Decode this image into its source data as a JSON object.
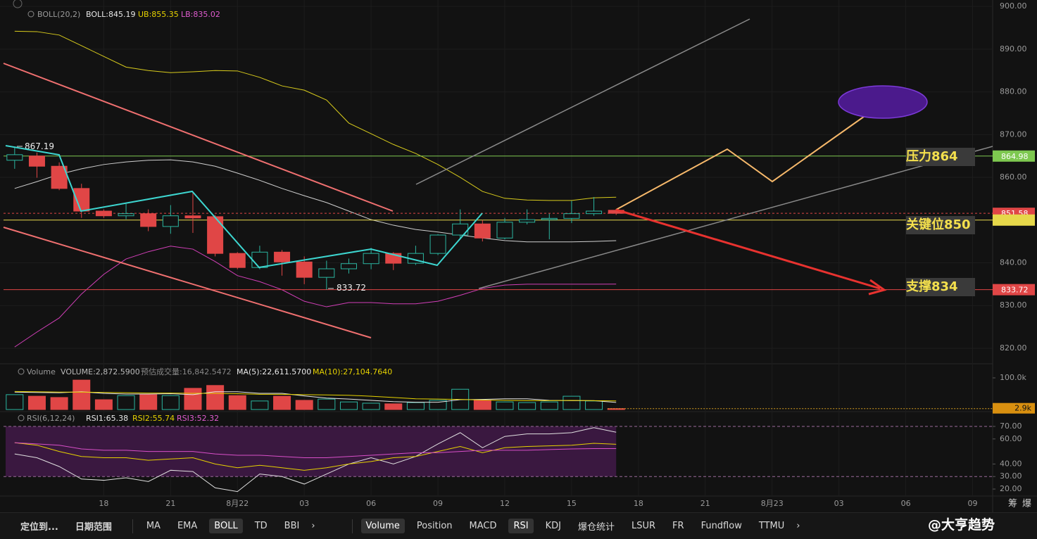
{
  "chart_data": [
    {
      "type": "candlestick",
      "title": "BOLL(20,2)",
      "x": [
        -4,
        -3,
        -2,
        -1,
        0,
        1,
        2,
        3,
        4,
        5,
        6,
        7,
        8,
        9,
        10,
        11,
        12,
        13,
        14,
        15,
        16,
        17,
        18,
        19,
        20,
        21,
        22,
        23
      ],
      "open": [
        864.0,
        865.0,
        862.6,
        857.4,
        852.1,
        851.0,
        851.5,
        848.5,
        851.0,
        850.8,
        842.2,
        838.9,
        842.5,
        840.2,
        836.6,
        838.6,
        839.8,
        842.2,
        839.9,
        842.2,
        846.5,
        849.1,
        845.8,
        849.5,
        850.1,
        850.4,
        851.5,
        852.3
      ],
      "high": [
        867.19,
        865.8,
        863.5,
        858.5,
        852.5,
        853.8,
        852.5,
        853.5,
        856.4,
        851.2,
        842.5,
        844.0,
        843.0,
        841.5,
        840.5,
        841.0,
        843.5,
        842.5,
        844.0,
        846.7,
        852.5,
        850.0,
        850.5,
        852.5,
        851.5,
        854.5,
        855.4,
        852.6
      ],
      "low": [
        862.0,
        859.9,
        857.0,
        850.5,
        850.5,
        850.2,
        847.4,
        846.8,
        847.0,
        841.5,
        838.5,
        838.5,
        837.0,
        835.0,
        833.72,
        837.5,
        838.5,
        838.3,
        839.5,
        841.8,
        845.8,
        845.0,
        845.5,
        849.0,
        845.5,
        849.3,
        851.0,
        851.2
      ],
      "close": [
        865.3,
        862.6,
        857.4,
        852.1,
        851.0,
        851.5,
        848.5,
        851.0,
        850.5,
        842.2,
        838.9,
        842.5,
        840.2,
        836.6,
        838.6,
        839.8,
        842.2,
        839.9,
        842.2,
        846.5,
        849.1,
        845.8,
        849.5,
        850.1,
        850.4,
        851.5,
        852.1,
        851.58
      ],
      "up_color": "#2bb5a0",
      "down_color": "#e04646",
      "series": [
        {
          "name": "BOLL:845.19",
          "color": "#cfcfcf",
          "values": [
            857.4,
            859.0,
            860.7,
            862.0,
            863.0,
            863.6,
            864.0,
            864.1,
            863.6,
            862.6,
            861.0,
            859.3,
            857.4,
            855.7,
            854.1,
            852.1,
            850.1,
            848.8,
            847.8,
            847.2,
            846.5,
            845.8,
            845.2,
            844.9,
            844.9,
            844.9,
            845.0,
            845.19
          ]
        },
        {
          "name": "UB:855.35",
          "color": "#d8cb1c",
          "values": [
            894.2,
            894.1,
            893.3,
            890.8,
            888.3,
            885.8,
            885.0,
            884.5,
            884.7,
            885.0,
            884.9,
            883.4,
            881.4,
            880.4,
            878.1,
            872.7,
            870.2,
            867.7,
            865.6,
            863.0,
            860.0,
            856.7,
            855.1,
            854.7,
            854.6,
            854.6,
            855.2,
            855.35
          ]
        },
        {
          "name": "LB:835.02",
          "color": "#d23fb8",
          "values": [
            820.3,
            823.8,
            827.1,
            832.7,
            837.3,
            840.9,
            842.6,
            843.9,
            843.2,
            840.3,
            837.0,
            835.6,
            833.7,
            831.0,
            829.7,
            830.7,
            830.7,
            830.4,
            830.4,
            831.0,
            832.4,
            834.0,
            834.8,
            835.0,
            835.0,
            835.0,
            835.0,
            835.02
          ]
        }
      ],
      "xlim": [
        -4.5,
        39.9
      ],
      "xticks": [
        {
          "value": 0,
          "label": "18"
        },
        {
          "value": 3,
          "label": "21"
        },
        {
          "value": 6,
          "label": "8月22"
        },
        {
          "value": 9,
          "label": "03"
        },
        {
          "value": 12,
          "label": "06"
        },
        {
          "value": 15,
          "label": "09"
        },
        {
          "value": 18,
          "label": "12"
        },
        {
          "value": 21,
          "label": "15"
        },
        {
          "value": 24,
          "label": "18"
        },
        {
          "value": 27,
          "label": "21"
        },
        {
          "value": 30,
          "label": "8月23"
        },
        {
          "value": 33,
          "label": "03"
        },
        {
          "value": 36,
          "label": "06"
        },
        {
          "value": 39,
          "label": "09"
        }
      ],
      "ylim": [
        816.7,
        901.5
      ],
      "yticks": [
        {
          "value": 900,
          "label": "900.00"
        },
        {
          "value": 890,
          "label": "890.00"
        },
        {
          "value": 880,
          "label": "880.00"
        },
        {
          "value": 870,
          "label": "870.00"
        },
        {
          "value": 860,
          "label": "860.00"
        },
        {
          "value": 850,
          "label": "850.00"
        },
        {
          "value": 840,
          "label": "840.00"
        },
        {
          "value": 830,
          "label": "830.00"
        },
        {
          "value": 820,
          "label": "820.00"
        }
      ],
      "hlines": [
        {
          "value": 864.98,
          "color": "#7ec850",
          "style": "solid",
          "tag": true
        },
        {
          "value": 851.58,
          "color": "#e04646",
          "style": "dotted",
          "tag": true
        },
        {
          "value": 850,
          "color": "#e6d84a",
          "style": "solid",
          "tag": false
        },
        {
          "value": 833.72,
          "color": "#e04646",
          "style": "solid",
          "tag": true
        }
      ],
      "annotations": [
        "压力864",
        "关键位850",
        "支撑834"
      ]
    },
    {
      "type": "bar",
      "title": "Volume",
      "estimate_label": "预估成交量:16,842.5472",
      "current_tag": "2.9k",
      "series": [
        {
          "name": "VOLUME:2,872.5900",
          "values": [
            47000,
            42000,
            38000,
            93000,
            31000,
            44000,
            47000,
            44000,
            67000,
            76000,
            44000,
            27000,
            42000,
            29000,
            33000,
            24000,
            20000,
            18000,
            22000,
            29000,
            64000,
            29000,
            24000,
            22000,
            24000,
            42000,
            27000,
            2872.59
          ]
        },
        {
          "name": "MA(5):22,611.5700",
          "color": "#e8e8e8",
          "values": [
            55000,
            54000,
            53000,
            56000,
            51000,
            49000,
            49000,
            50000,
            47000,
            56000,
            56000,
            51000,
            51000,
            43000,
            36000,
            33000,
            29000,
            25000,
            23000,
            23000,
            31000,
            32000,
            34000,
            34000,
            29000,
            28000,
            28000,
            22611.57
          ]
        },
        {
          "name": "MA(10):27,104.7640",
          "color": "#e6d200",
          "values": [
            57000,
            56000,
            55000,
            55000,
            54000,
            53000,
            52000,
            52000,
            51000,
            51000,
            50000,
            48000,
            48000,
            47000,
            46000,
            45000,
            42000,
            38000,
            34000,
            33000,
            32000,
            30000,
            29000,
            28000,
            28000,
            29000,
            28000,
            27104.764
          ]
        }
      ],
      "ylim": [
        0,
        137800
      ],
      "yticks": [
        {
          "value": 100000,
          "label": "100.0k"
        }
      ]
    },
    {
      "type": "line",
      "title": "RSI(6,12,24)",
      "band": [
        30,
        70
      ],
      "series": [
        {
          "name": "RSI1:65.38",
          "color": "#e0e0e0",
          "values": [
            48,
            45,
            38,
            28,
            27,
            29,
            26,
            35,
            34,
            21,
            18,
            32,
            30,
            24,
            32,
            40,
            45,
            40,
            46,
            56,
            65,
            53,
            62,
            64,
            64,
            65,
            69,
            65.38
          ]
        },
        {
          "name": "RSI2:55.74",
          "color": "#e6d200",
          "values": [
            57,
            55,
            50,
            46,
            45,
            45,
            43,
            44,
            45,
            40,
            37,
            39,
            37,
            35,
            37,
            40,
            42,
            45,
            46,
            50,
            54,
            49,
            53,
            54,
            54.5,
            55,
            56.5,
            55.74
          ]
        },
        {
          "name": "RSI3:52.32",
          "color": "#d84fc8",
          "values": [
            57,
            56,
            55,
            52,
            51,
            51,
            50,
            50,
            50,
            48,
            47,
            47,
            46,
            45,
            45,
            46,
            47,
            48,
            49,
            49,
            50,
            51,
            51,
            51,
            51.5,
            52,
            52.3,
            52.32
          ]
        }
      ],
      "ylim": [
        14.4,
        80.1
      ],
      "yticks": [
        {
          "value": 70,
          "label": "70.00"
        },
        {
          "value": 60,
          "label": "60.00"
        },
        {
          "value": 40,
          "label": "40.00"
        },
        {
          "value": 30,
          "label": "30.00"
        },
        {
          "value": 20,
          "label": "20.00"
        }
      ]
    }
  ],
  "toolbar": {
    "left": [
      {
        "label": "定位到..."
      },
      {
        "label": "日期范围"
      }
    ],
    "overlays": [
      {
        "label": "MA"
      },
      {
        "label": "EMA"
      },
      {
        "label": "BOLL",
        "active": true
      },
      {
        "label": "TD"
      },
      {
        "label": "BBI"
      }
    ],
    "indicators": [
      {
        "label": "Volume",
        "active": true
      },
      {
        "label": "Position"
      },
      {
        "label": "MACD"
      },
      {
        "label": "RSI",
        "active": true
      },
      {
        "label": "KDJ"
      },
      {
        "label": "爆仓统计"
      },
      {
        "label": "LSUR"
      },
      {
        "label": "FR"
      },
      {
        "label": "Fundflow"
      },
      {
        "label": "TTMU"
      }
    ]
  },
  "side": [
    "筹",
    "爆"
  ],
  "watermark": "@大亨趋势"
}
